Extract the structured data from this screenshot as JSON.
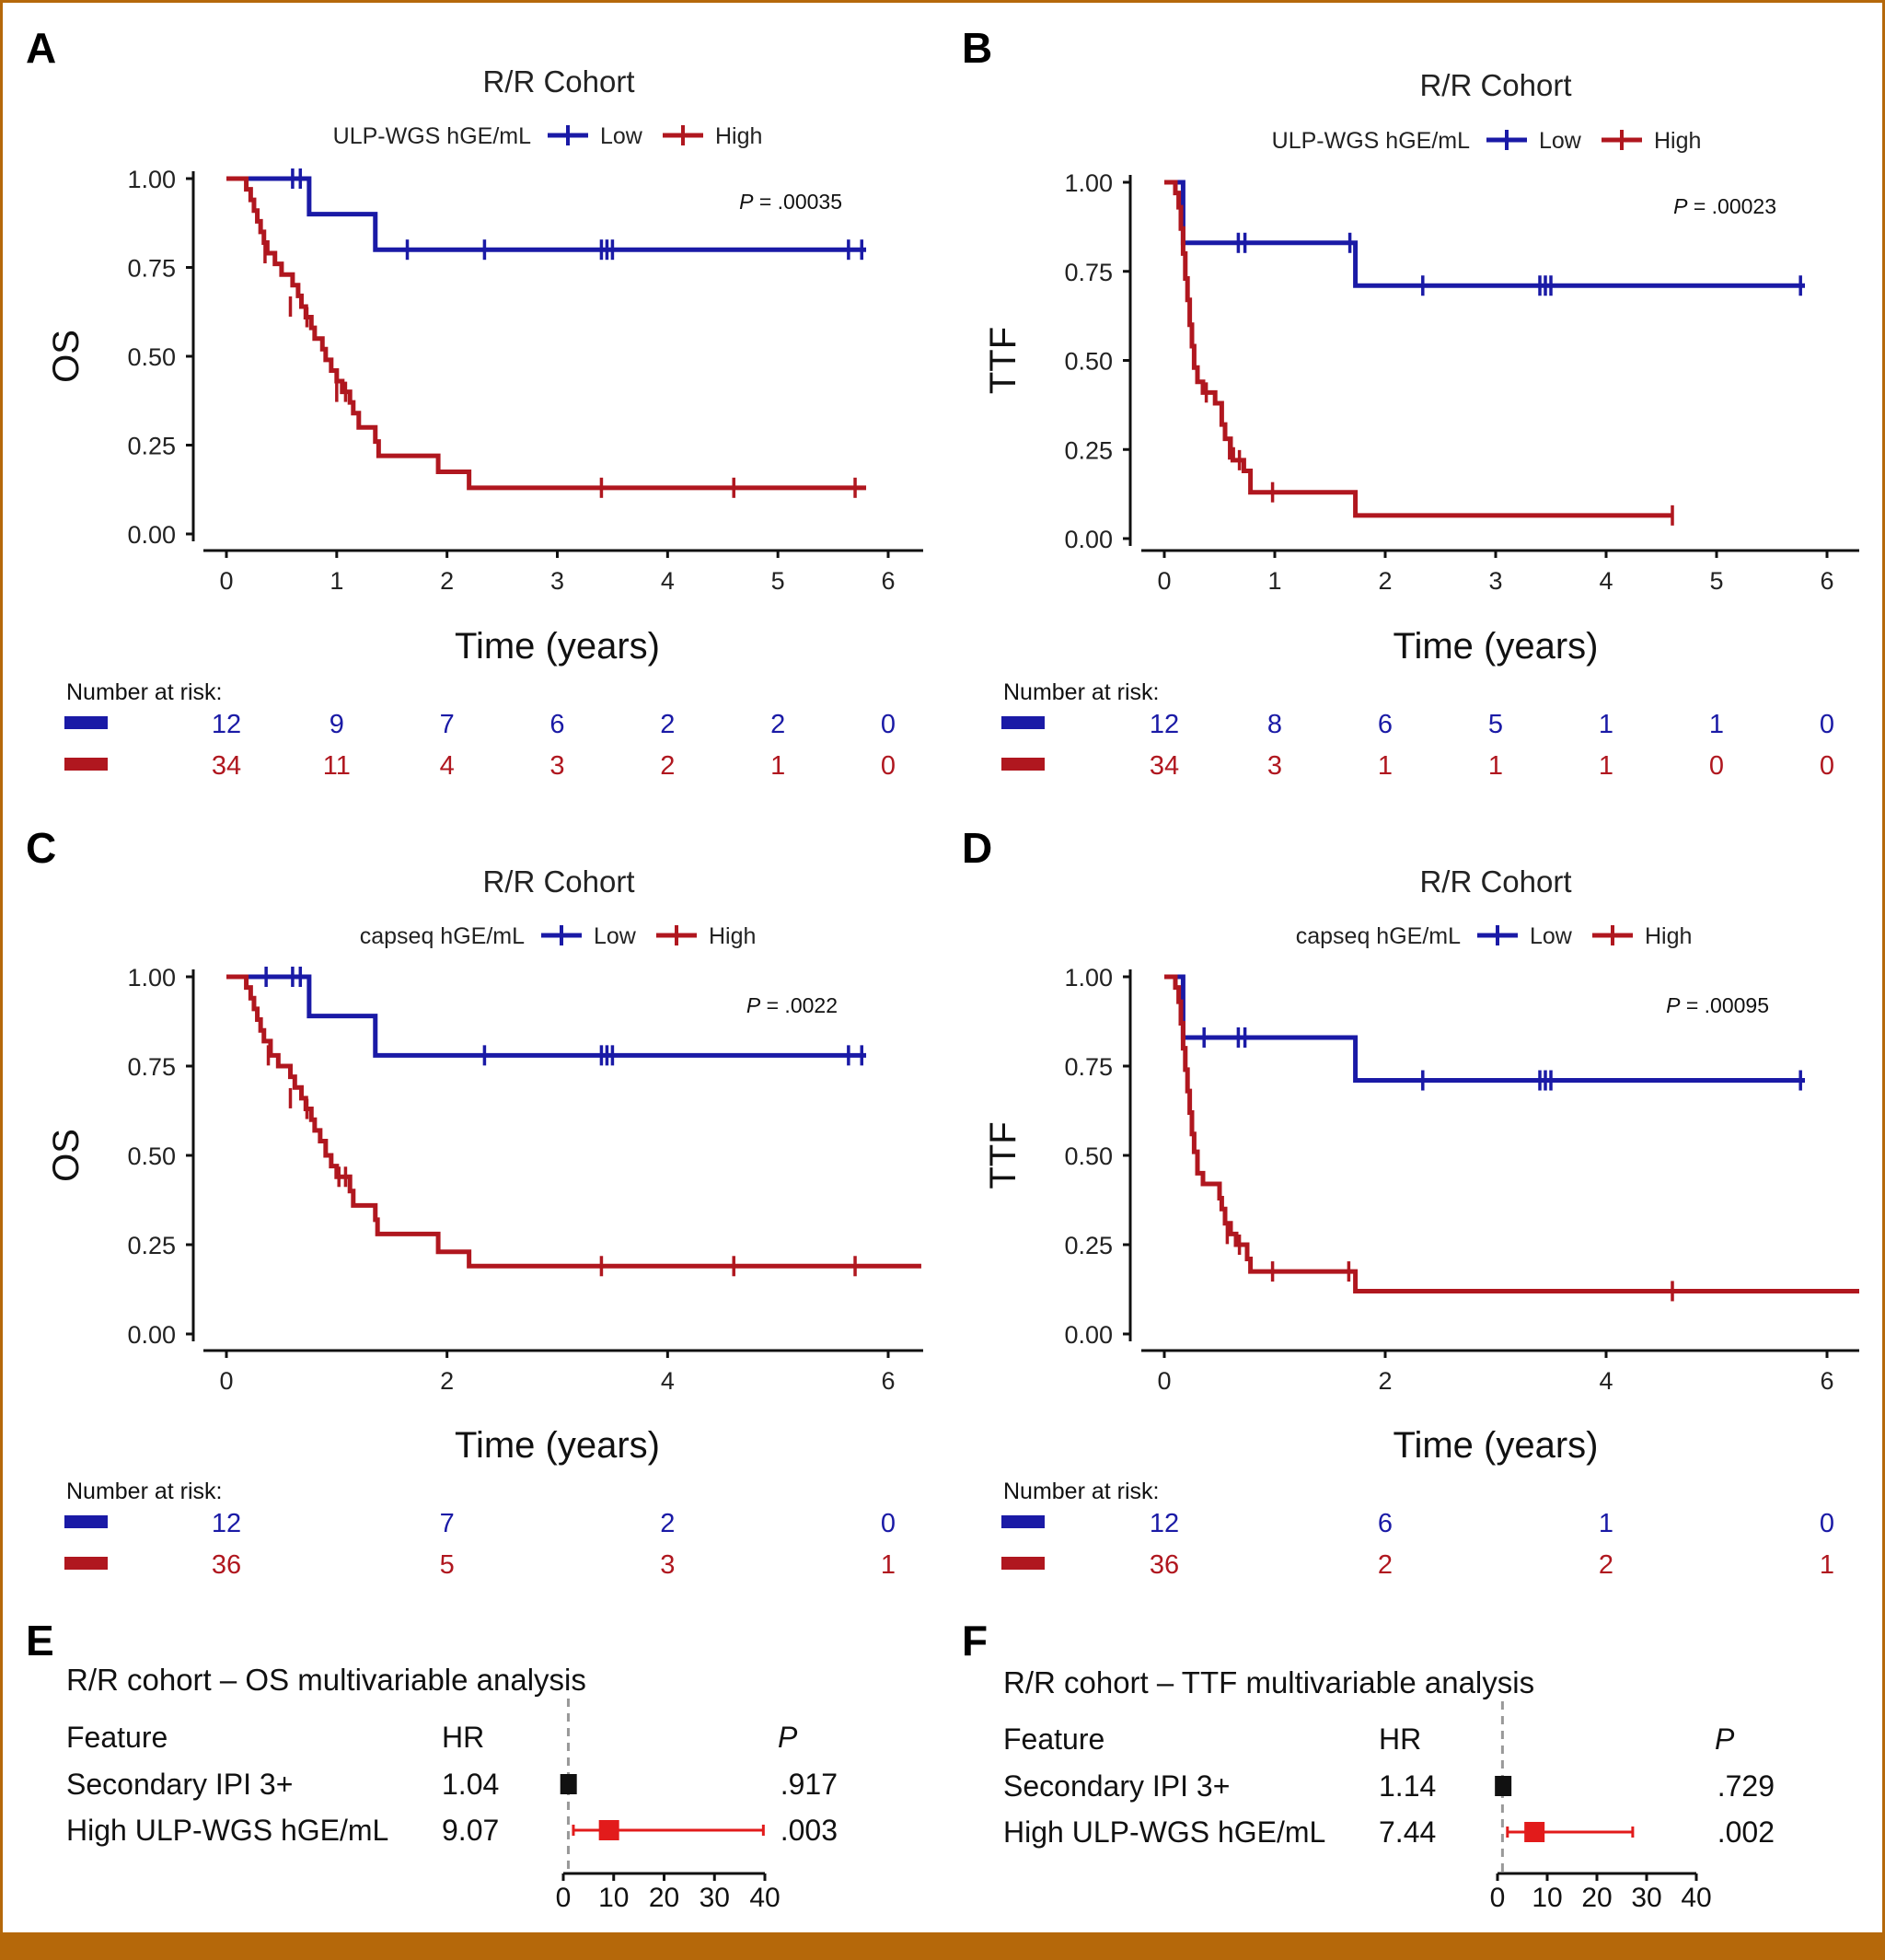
{
  "colors": {
    "low": "#1a1aa6",
    "high": "#b0171f",
    "forest_high": "#e21b1b",
    "forest_ref": "#111111",
    "border": "#b5680a",
    "footer_bar": "#b5680a"
  },
  "chart_data": [
    {
      "panel": "A",
      "type": "line",
      "subtype": "kaplan-meier",
      "title": "R/R Cohort",
      "legend_title": "ULP-WGS hGE/mL",
      "legend_labels": [
        "Low",
        "High"
      ],
      "ylabel": "OS",
      "xlabel": "Time (years)",
      "xlim": [
        0,
        6
      ],
      "ylim": [
        0,
        1
      ],
      "xticks": [
        0,
        1,
        2,
        3,
        4,
        5,
        6
      ],
      "yticks": [
        0,
        0.25,
        0.5,
        0.75,
        1
      ],
      "ytick_labels": [
        "0.00",
        "0.25",
        "0.50",
        "0.75",
        "1.00"
      ],
      "p_label": "P",
      "p_value": " = .00035",
      "series": [
        {
          "name": "Low",
          "steps": [
            [
              0,
              1.0
            ],
            [
              0.75,
              0.9
            ],
            [
              1.35,
              0.8
            ],
            [
              5.8,
              0.8
            ]
          ],
          "censor": [
            [
              0.6,
              1.0
            ],
            [
              0.67,
              1.0
            ],
            [
              1.64,
              0.8
            ],
            [
              2.34,
              0.8
            ],
            [
              3.4,
              0.8
            ],
            [
              3.45,
              0.8
            ],
            [
              3.5,
              0.8
            ],
            [
              5.64,
              0.8
            ],
            [
              5.76,
              0.8
            ]
          ]
        },
        {
          "name": "High",
          "steps": [
            [
              0,
              1.0
            ],
            [
              0.18,
              0.97
            ],
            [
              0.22,
              0.94
            ],
            [
              0.25,
              0.91
            ],
            [
              0.28,
              0.88
            ],
            [
              0.31,
              0.85
            ],
            [
              0.34,
              0.82
            ],
            [
              0.37,
              0.79
            ],
            [
              0.44,
              0.76
            ],
            [
              0.5,
              0.73
            ],
            [
              0.6,
              0.7
            ],
            [
              0.65,
              0.67
            ],
            [
              0.68,
              0.64
            ],
            [
              0.72,
              0.61
            ],
            [
              0.77,
              0.58
            ],
            [
              0.8,
              0.55
            ],
            [
              0.87,
              0.52
            ],
            [
              0.9,
              0.49
            ],
            [
              0.95,
              0.46
            ],
            [
              1.0,
              0.43
            ],
            [
              1.05,
              0.4
            ],
            [
              1.12,
              0.37
            ],
            [
              1.15,
              0.34
            ],
            [
              1.2,
              0.3
            ],
            [
              1.35,
              0.26
            ],
            [
              1.38,
              0.22
            ],
            [
              1.92,
              0.175
            ],
            [
              2.2,
              0.13
            ],
            [
              5.8,
              0.13
            ]
          ],
          "censor": [
            [
              0.35,
              0.79
            ],
            [
              0.58,
              0.64
            ],
            [
              0.73,
              0.61
            ],
            [
              1.0,
              0.4
            ],
            [
              1.08,
              0.4
            ],
            [
              3.4,
              0.13
            ],
            [
              4.6,
              0.13
            ],
            [
              5.7,
              0.13
            ]
          ]
        }
      ],
      "risk_table": {
        "title": "Number at risk:",
        "times": [
          0,
          1,
          2,
          3,
          4,
          5,
          6
        ],
        "low": [
          "12",
          "9",
          "7",
          "6",
          "2",
          "2",
          "0"
        ],
        "high": [
          "34",
          "11",
          "4",
          "3",
          "2",
          "1",
          "0"
        ]
      }
    },
    {
      "panel": "B",
      "type": "line",
      "subtype": "kaplan-meier",
      "title": "R/R Cohort",
      "legend_title": "ULP-WGS hGE/mL",
      "legend_labels": [
        "Low",
        "High"
      ],
      "ylabel": "TTF",
      "xlabel": "Time (years)",
      "xlim": [
        0,
        6
      ],
      "ylim": [
        0,
        1
      ],
      "xticks": [
        0,
        1,
        2,
        3,
        4,
        5,
        6
      ],
      "yticks": [
        0,
        0.25,
        0.5,
        0.75,
        1
      ],
      "ytick_labels": [
        "0.00",
        "0.25",
        "0.50",
        "0.75",
        "1.00"
      ],
      "p_label": "P",
      "p_value": " = .00023",
      "series": [
        {
          "name": "Low",
          "steps": [
            [
              0,
              1.0
            ],
            [
              0.17,
              0.83
            ],
            [
              1.73,
              0.71
            ],
            [
              5.8,
              0.71
            ]
          ],
          "censor": [
            [
              0.67,
              0.83
            ],
            [
              0.73,
              0.83
            ],
            [
              1.68,
              0.83
            ],
            [
              2.34,
              0.71
            ],
            [
              3.4,
              0.71
            ],
            [
              3.45,
              0.71
            ],
            [
              3.5,
              0.71
            ],
            [
              5.76,
              0.71
            ]
          ]
        },
        {
          "name": "High",
          "steps": [
            [
              0,
              1.0
            ],
            [
              0.1,
              0.97
            ],
            [
              0.13,
              0.93
            ],
            [
              0.15,
              0.87
            ],
            [
              0.17,
              0.8
            ],
            [
              0.19,
              0.73
            ],
            [
              0.21,
              0.67
            ],
            [
              0.23,
              0.6
            ],
            [
              0.25,
              0.54
            ],
            [
              0.27,
              0.48
            ],
            [
              0.3,
              0.44
            ],
            [
              0.35,
              0.41
            ],
            [
              0.46,
              0.38
            ],
            [
              0.52,
              0.32
            ],
            [
              0.55,
              0.28
            ],
            [
              0.6,
              0.25
            ],
            [
              0.62,
              0.22
            ],
            [
              0.72,
              0.19
            ],
            [
              0.78,
              0.13
            ],
            [
              1.73,
              0.065
            ],
            [
              4.6,
              0.065
            ]
          ],
          "censor": [
            [
              0.38,
              0.41
            ],
            [
              0.59,
              0.25
            ],
            [
              0.68,
              0.22
            ],
            [
              0.98,
              0.13
            ],
            [
              4.6,
              0.065
            ]
          ]
        }
      ],
      "risk_table": {
        "title": "Number at risk:",
        "times": [
          0,
          1,
          2,
          3,
          4,
          5,
          6
        ],
        "low": [
          "12",
          "8",
          "6",
          "5",
          "1",
          "1",
          "0"
        ],
        "high": [
          "34",
          "3",
          "1",
          "1",
          "1",
          "0",
          "0"
        ]
      }
    },
    {
      "panel": "C",
      "type": "line",
      "subtype": "kaplan-meier",
      "title": "R/R Cohort",
      "legend_title": "capseq hGE/mL",
      "legend_labels": [
        "Low",
        "High"
      ],
      "ylabel": "OS",
      "xlabel": "Time (years)",
      "xlim": [
        0,
        6
      ],
      "ylim": [
        0,
        1
      ],
      "xticks": [
        0,
        2,
        4,
        6
      ],
      "yticks": [
        0,
        0.25,
        0.5,
        0.75,
        1
      ],
      "ytick_labels": [
        "0.00",
        "0.25",
        "0.50",
        "0.75",
        "1.00"
      ],
      "p_label": "P",
      "p_value": " = .0022",
      "series": [
        {
          "name": "Low",
          "steps": [
            [
              0,
              1.0
            ],
            [
              0.75,
              0.89
            ],
            [
              1.35,
              0.78
            ],
            [
              5.8,
              0.78
            ]
          ],
          "censor": [
            [
              0.36,
              1.0
            ],
            [
              0.6,
              1.0
            ],
            [
              0.67,
              1.0
            ],
            [
              2.34,
              0.78
            ],
            [
              3.4,
              0.78
            ],
            [
              3.45,
              0.78
            ],
            [
              3.5,
              0.78
            ],
            [
              5.64,
              0.78
            ],
            [
              5.76,
              0.78
            ]
          ]
        },
        {
          "name": "High",
          "steps": [
            [
              0,
              1.0
            ],
            [
              0.18,
              0.97
            ],
            [
              0.22,
              0.94
            ],
            [
              0.25,
              0.91
            ],
            [
              0.28,
              0.88
            ],
            [
              0.31,
              0.85
            ],
            [
              0.34,
              0.82
            ],
            [
              0.4,
              0.78
            ],
            [
              0.47,
              0.75
            ],
            [
              0.58,
              0.72
            ],
            [
              0.62,
              0.69
            ],
            [
              0.68,
              0.66
            ],
            [
              0.72,
              0.63
            ],
            [
              0.77,
              0.6
            ],
            [
              0.8,
              0.57
            ],
            [
              0.85,
              0.54
            ],
            [
              0.9,
              0.5
            ],
            [
              0.95,
              0.47
            ],
            [
              1.0,
              0.44
            ],
            [
              1.12,
              0.4
            ],
            [
              1.15,
              0.36
            ],
            [
              1.35,
              0.32
            ],
            [
              1.37,
              0.28
            ],
            [
              1.92,
              0.23
            ],
            [
              2.2,
              0.19
            ],
            [
              6.3,
              0.19
            ]
          ],
          "censor": [
            [
              0.38,
              0.78
            ],
            [
              0.58,
              0.66
            ],
            [
              0.73,
              0.63
            ],
            [
              1.02,
              0.44
            ],
            [
              1.08,
              0.44
            ],
            [
              3.4,
              0.19
            ],
            [
              4.6,
              0.19
            ],
            [
              5.7,
              0.19
            ]
          ]
        }
      ],
      "risk_table": {
        "title": "Number at risk:",
        "times": [
          0,
          2,
          4,
          6
        ],
        "low": [
          "12",
          "7",
          "2",
          "0"
        ],
        "high": [
          "36",
          "5",
          "3",
          "1"
        ]
      }
    },
    {
      "panel": "D",
      "type": "line",
      "subtype": "kaplan-meier",
      "title": "R/R Cohort",
      "legend_title": "capseq hGE/mL",
      "legend_labels": [
        "Low",
        "High"
      ],
      "ylabel": "TTF",
      "xlabel": "Time (years)",
      "xlim": [
        0,
        6
      ],
      "ylim": [
        0,
        1
      ],
      "xticks": [
        0,
        2,
        4,
        6
      ],
      "yticks": [
        0,
        0.25,
        0.5,
        0.75,
        1
      ],
      "ytick_labels": [
        "0.00",
        "0.25",
        "0.50",
        "0.75",
        "1.00"
      ],
      "p_label": "P",
      "p_value": " = .00095",
      "series": [
        {
          "name": "Low",
          "steps": [
            [
              0,
              1.0
            ],
            [
              0.17,
              0.83
            ],
            [
              1.73,
              0.71
            ],
            [
              5.8,
              0.71
            ]
          ],
          "censor": [
            [
              0.36,
              0.83
            ],
            [
              0.67,
              0.83
            ],
            [
              0.73,
              0.83
            ],
            [
              2.34,
              0.71
            ],
            [
              3.4,
              0.71
            ],
            [
              3.45,
              0.71
            ],
            [
              3.5,
              0.71
            ],
            [
              5.76,
              0.71
            ]
          ]
        },
        {
          "name": "High",
          "steps": [
            [
              0,
              1.0
            ],
            [
              0.1,
              0.97
            ],
            [
              0.13,
              0.93
            ],
            [
              0.15,
              0.87
            ],
            [
              0.17,
              0.8
            ],
            [
              0.19,
              0.74
            ],
            [
              0.21,
              0.68
            ],
            [
              0.23,
              0.62
            ],
            [
              0.25,
              0.56
            ],
            [
              0.27,
              0.51
            ],
            [
              0.3,
              0.45
            ],
            [
              0.35,
              0.42
            ],
            [
              0.5,
              0.38
            ],
            [
              0.52,
              0.35
            ],
            [
              0.55,
              0.31
            ],
            [
              0.6,
              0.28
            ],
            [
              0.65,
              0.25
            ],
            [
              0.75,
              0.21
            ],
            [
              0.78,
              0.175
            ],
            [
              1.73,
              0.12
            ],
            [
              6.3,
              0.12
            ]
          ],
          "censor": [
            [
              0.57,
              0.28
            ],
            [
              0.68,
              0.25
            ],
            [
              0.98,
              0.175
            ],
            [
              1.67,
              0.175
            ],
            [
              4.6,
              0.12
            ]
          ]
        }
      ],
      "risk_table": {
        "title": "Number at risk:",
        "times": [
          0,
          2,
          4,
          6
        ],
        "low": [
          "12",
          "6",
          "1",
          "0"
        ],
        "high": [
          "36",
          "2",
          "2",
          "1"
        ]
      }
    },
    {
      "panel": "E",
      "type": "table",
      "subtype": "forest",
      "title": "R/R cohort – OS multivariable analysis",
      "headers": {
        "feature": "Feature",
        "hr": "HR",
        "p": "P"
      },
      "xlim": [
        0,
        40
      ],
      "xticks": [
        0,
        10,
        20,
        30,
        40
      ],
      "ref_line": 1,
      "rows": [
        {
          "feature": "Secondary IPI 3+",
          "hr": 1.04,
          "hr_label": "1.04",
          "ci": [
            1.04,
            1.04
          ],
          "p": ".917",
          "style": "ref"
        },
        {
          "feature": "High ULP-WGS hGE/mL",
          "hr": 9.07,
          "hr_label": "9.07",
          "ci": [
            2.0,
            39.7
          ],
          "p": ".003",
          "style": "high"
        }
      ]
    },
    {
      "panel": "F",
      "type": "table",
      "subtype": "forest",
      "title": "R/R cohort – TTF multivariable analysis",
      "headers": {
        "feature": "Feature",
        "hr": "HR",
        "p": "P"
      },
      "xlim": [
        0,
        40
      ],
      "xticks": [
        0,
        10,
        20,
        30,
        40
      ],
      "ref_line": 1,
      "rows": [
        {
          "feature": "Secondary IPI 3+",
          "hr": 1.14,
          "hr_label": "1.14",
          "ci": [
            1.14,
            1.14
          ],
          "p": ".729",
          "style": "ref"
        },
        {
          "feature": "High ULP-WGS hGE/mL",
          "hr": 7.44,
          "hr_label": "7.44",
          "ci": [
            2.0,
            27.2
          ],
          "p": ".002",
          "style": "high"
        }
      ]
    }
  ]
}
